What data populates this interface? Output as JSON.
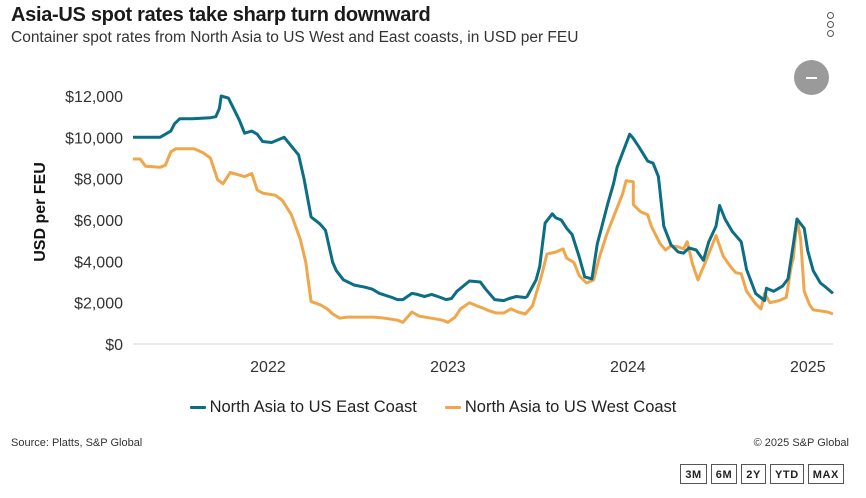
{
  "header": {
    "title": "Asia-US spot rates take sharp turn downward",
    "subtitle": "Container spot rates from North Asia to US West and East coasts, in USD per FEU"
  },
  "controls": {
    "menu_icon": "more-vertical-icon",
    "zoom_out_icon": "minus-circle-icon",
    "range_buttons": [
      "3M",
      "6M",
      "2Y",
      "YTD",
      "MAX"
    ]
  },
  "footer": {
    "source": "Source: Platts, S&P Global",
    "copyright": "© 2025 S&P Global"
  },
  "chart_data": {
    "type": "line",
    "title": "Asia-US spot rates take sharp turn downward",
    "subtitle": "Container spot rates from North Asia to US West and East coasts, in USD per FEU",
    "xlabel": "",
    "ylabel": "USD per FEU",
    "xlim": [
      2021.25,
      2025.14
    ],
    "ylim": [
      0,
      12000
    ],
    "x_ticks": [
      2022,
      2023,
      2024,
      2025
    ],
    "x_tick_labels": [
      "2022",
      "2023",
      "2024",
      "2025"
    ],
    "y_ticks": [
      0,
      2000,
      4000,
      6000,
      8000,
      10000,
      12000
    ],
    "y_tick_labels": [
      "$0",
      "$2,000",
      "$4,000",
      "$6,000",
      "$8,000",
      "$10,000",
      "$12,000"
    ],
    "grid": "baseline only",
    "legend_position": "bottom-center",
    "series": [
      {
        "name": "North Asia to US East Coast",
        "color": "#0b6e84",
        "points": [
          [
            2021.25,
            10000
          ],
          [
            2021.4,
            10000
          ],
          [
            2021.46,
            10300
          ],
          [
            2021.48,
            10650
          ],
          [
            2021.51,
            10900
          ],
          [
            2021.58,
            10900
          ],
          [
            2021.68,
            10950
          ],
          [
            2021.71,
            11000
          ],
          [
            2021.73,
            11400
          ],
          [
            2021.74,
            12000
          ],
          [
            2021.78,
            11900
          ],
          [
            2021.84,
            10850
          ],
          [
            2021.87,
            10200
          ],
          [
            2021.91,
            10300
          ],
          [
            2021.94,
            10150
          ],
          [
            2021.97,
            9800
          ],
          [
            2022.02,
            9750
          ],
          [
            2022.09,
            10000
          ],
          [
            2022.17,
            9150
          ],
          [
            2022.2,
            8000
          ],
          [
            2022.24,
            6150
          ],
          [
            2022.29,
            5800
          ],
          [
            2022.32,
            5500
          ],
          [
            2022.36,
            3950
          ],
          [
            2022.38,
            3550
          ],
          [
            2022.42,
            3100
          ],
          [
            2022.48,
            2850
          ],
          [
            2022.54,
            2750
          ],
          [
            2022.58,
            2650
          ],
          [
            2022.62,
            2450
          ],
          [
            2022.69,
            2250
          ],
          [
            2022.72,
            2150
          ],
          [
            2022.75,
            2150
          ],
          [
            2022.8,
            2450
          ],
          [
            2022.83,
            2400
          ],
          [
            2022.87,
            2300
          ],
          [
            2022.91,
            2400
          ],
          [
            2022.96,
            2250
          ],
          [
            2022.99,
            2150
          ],
          [
            2023.02,
            2200
          ],
          [
            2023.05,
            2550
          ],
          [
            2023.12,
            3050
          ],
          [
            2023.18,
            3000
          ],
          [
            2023.21,
            2650
          ],
          [
            2023.26,
            2150
          ],
          [
            2023.31,
            2100
          ],
          [
            2023.34,
            2200
          ],
          [
            2023.38,
            2300
          ],
          [
            2023.43,
            2250
          ],
          [
            2023.44,
            2300
          ],
          [
            2023.49,
            3100
          ],
          [
            2023.51,
            3750
          ],
          [
            2023.54,
            5850
          ],
          [
            2023.58,
            6300
          ],
          [
            2023.6,
            6100
          ],
          [
            2023.63,
            6000
          ],
          [
            2023.66,
            5600
          ],
          [
            2023.69,
            5300
          ],
          [
            2023.73,
            4200
          ],
          [
            2023.76,
            3250
          ],
          [
            2023.8,
            3150
          ],
          [
            2023.83,
            4850
          ],
          [
            2023.85,
            5500
          ],
          [
            2023.89,
            6850
          ],
          [
            2023.92,
            7750
          ],
          [
            2023.94,
            8550
          ],
          [
            2024.01,
            10150
          ],
          [
            2024.03,
            9950
          ],
          [
            2024.06,
            9550
          ],
          [
            2024.11,
            8850
          ],
          [
            2024.14,
            8750
          ],
          [
            2024.17,
            8100
          ],
          [
            2024.2,
            5700
          ],
          [
            2024.24,
            4800
          ],
          [
            2024.28,
            4450
          ],
          [
            2024.31,
            4400
          ],
          [
            2024.34,
            4650
          ],
          [
            2024.38,
            4550
          ],
          [
            2024.42,
            4050
          ],
          [
            2024.45,
            4950
          ],
          [
            2024.49,
            5700
          ],
          [
            2024.51,
            6700
          ],
          [
            2024.54,
            6050
          ],
          [
            2024.58,
            5450
          ],
          [
            2024.61,
            5150
          ],
          [
            2024.63,
            4950
          ],
          [
            2024.66,
            3600
          ],
          [
            2024.71,
            2450
          ],
          [
            2024.76,
            2100
          ],
          [
            2024.77,
            2700
          ],
          [
            2024.81,
            2550
          ],
          [
            2024.86,
            2800
          ],
          [
            2024.89,
            3150
          ],
          [
            2024.92,
            4850
          ],
          [
            2024.94,
            6050
          ],
          [
            2024.98,
            5600
          ],
          [
            2025.0,
            4500
          ],
          [
            2025.03,
            3550
          ],
          [
            2025.07,
            2950
          ],
          [
            2025.1,
            2750
          ],
          [
            2025.14,
            2450
          ]
        ]
      },
      {
        "name": "North Asia to US West Coast",
        "color": "#f0a64b",
        "points": [
          [
            2021.25,
            8950
          ],
          [
            2021.29,
            8950
          ],
          [
            2021.32,
            8600
          ],
          [
            2021.4,
            8550
          ],
          [
            2021.43,
            8650
          ],
          [
            2021.46,
            9300
          ],
          [
            2021.49,
            9450
          ],
          [
            2021.59,
            9450
          ],
          [
            2021.64,
            9250
          ],
          [
            2021.68,
            9000
          ],
          [
            2021.72,
            7950
          ],
          [
            2021.75,
            7750
          ],
          [
            2021.79,
            8300
          ],
          [
            2021.87,
            8100
          ],
          [
            2021.91,
            8250
          ],
          [
            2021.94,
            7450
          ],
          [
            2021.97,
            7300
          ],
          [
            2022.04,
            7200
          ],
          [
            2022.08,
            6950
          ],
          [
            2022.13,
            6250
          ],
          [
            2022.18,
            5050
          ],
          [
            2022.21,
            3950
          ],
          [
            2022.24,
            2050
          ],
          [
            2022.29,
            1900
          ],
          [
            2022.33,
            1700
          ],
          [
            2022.36,
            1450
          ],
          [
            2022.4,
            1250
          ],
          [
            2022.44,
            1300
          ],
          [
            2022.48,
            1300
          ],
          [
            2022.59,
            1300
          ],
          [
            2022.65,
            1250
          ],
          [
            2022.72,
            1150
          ],
          [
            2022.75,
            1050
          ],
          [
            2022.8,
            1550
          ],
          [
            2022.84,
            1350
          ],
          [
            2022.91,
            1250
          ],
          [
            2022.94,
            1200
          ],
          [
            2022.97,
            1150
          ],
          [
            2023.0,
            1050
          ],
          [
            2023.04,
            1300
          ],
          [
            2023.07,
            1700
          ],
          [
            2023.12,
            2000
          ],
          [
            2023.16,
            1850
          ],
          [
            2023.19,
            1750
          ],
          [
            2023.23,
            1600
          ],
          [
            2023.27,
            1500
          ],
          [
            2023.31,
            1500
          ],
          [
            2023.35,
            1700
          ],
          [
            2023.39,
            1550
          ],
          [
            2023.43,
            1450
          ],
          [
            2023.47,
            1850
          ],
          [
            2023.52,
            3300
          ],
          [
            2023.55,
            4350
          ],
          [
            2023.6,
            4450
          ],
          [
            2023.64,
            4600
          ],
          [
            2023.66,
            4150
          ],
          [
            2023.7,
            3950
          ],
          [
            2023.73,
            3300
          ],
          [
            2023.77,
            2950
          ],
          [
            2023.81,
            3100
          ],
          [
            2023.84,
            4150
          ],
          [
            2023.88,
            5250
          ],
          [
            2023.92,
            6150
          ],
          [
            2023.97,
            7250
          ],
          [
            2023.99,
            7900
          ],
          [
            2024.03,
            7850
          ],
          [
            2024.03,
            6750
          ],
          [
            2024.07,
            6400
          ],
          [
            2024.11,
            6250
          ],
          [
            2024.13,
            5700
          ],
          [
            2024.18,
            4850
          ],
          [
            2024.21,
            4550
          ],
          [
            2024.24,
            4750
          ],
          [
            2024.28,
            4700
          ],
          [
            2024.31,
            4600
          ],
          [
            2024.33,
            4950
          ],
          [
            2024.36,
            3850
          ],
          [
            2024.39,
            3100
          ],
          [
            2024.44,
            4150
          ],
          [
            2024.49,
            5250
          ],
          [
            2024.53,
            4250
          ],
          [
            2024.57,
            3750
          ],
          [
            2024.6,
            3450
          ],
          [
            2024.63,
            3400
          ],
          [
            2024.66,
            2550
          ],
          [
            2024.71,
            1950
          ],
          [
            2024.74,
            1700
          ],
          [
            2024.76,
            2450
          ],
          [
            2024.79,
            2000
          ],
          [
            2024.84,
            2100
          ],
          [
            2024.88,
            2250
          ],
          [
            2024.91,
            3850
          ],
          [
            2024.92,
            4150
          ],
          [
            2024.94,
            6050
          ],
          [
            2024.96,
            5100
          ],
          [
            2024.98,
            2550
          ],
          [
            2025.01,
            1900
          ],
          [
            2025.03,
            1650
          ],
          [
            2025.07,
            1600
          ],
          [
            2025.11,
            1550
          ],
          [
            2025.14,
            1450
          ]
        ]
      }
    ]
  }
}
